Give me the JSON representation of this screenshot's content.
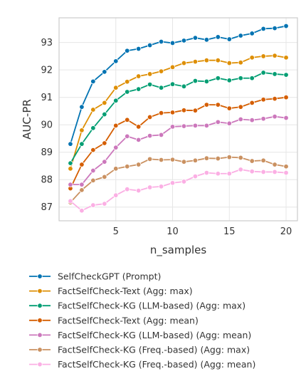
{
  "chart_data": {
    "type": "line",
    "xlabel": "n_samples",
    "ylabel": "AUC-PR",
    "xlim": [
      0,
      21
    ],
    "ylim": [
      86.5,
      93.9
    ],
    "xticks": [
      5,
      10,
      15,
      20
    ],
    "yticks": [
      87,
      88,
      89,
      90,
      91,
      92,
      93
    ],
    "xtick_labels": [
      "5",
      "10",
      "15",
      "20"
    ],
    "ytick_labels": [
      "87",
      "88",
      "89",
      "90",
      "91",
      "92",
      "93"
    ],
    "grid": true,
    "legend_placement": "below",
    "x": [
      1,
      2,
      3,
      4,
      5,
      6,
      7,
      8,
      9,
      10,
      11,
      12,
      13,
      14,
      15,
      16,
      17,
      18,
      19,
      20
    ],
    "series": [
      {
        "name": "SelfCheckGPT (Prompt)",
        "color": "#0173b2",
        "values": [
          89.3,
          90.65,
          91.58,
          91.93,
          92.32,
          92.7,
          92.77,
          92.9,
          93.03,
          92.98,
          93.07,
          93.17,
          93.1,
          93.2,
          93.12,
          93.25,
          93.33,
          93.5,
          93.52,
          93.6
        ]
      },
      {
        "name": "FactSelfCheck-Text (Agg: max)",
        "color": "#de8f05",
        "values": [
          88.4,
          89.8,
          90.55,
          90.8,
          91.35,
          91.57,
          91.77,
          91.85,
          91.95,
          92.1,
          92.25,
          92.3,
          92.35,
          92.35,
          92.25,
          92.27,
          92.45,
          92.5,
          92.52,
          92.45
        ]
      },
      {
        "name": "FactSelfCheck-KG (LLM-based) (Agg: max)",
        "color": "#029e73",
        "values": [
          88.6,
          89.3,
          89.88,
          90.38,
          90.88,
          91.2,
          91.3,
          91.47,
          91.35,
          91.48,
          91.4,
          91.6,
          91.58,
          91.7,
          91.62,
          91.7,
          91.7,
          91.9,
          91.85,
          91.82
        ]
      },
      {
        "name": "FactSelfCheck-Text (Agg: mean)",
        "color": "#d55e00",
        "values": [
          87.68,
          88.55,
          89.08,
          89.33,
          89.97,
          90.18,
          89.93,
          90.28,
          90.43,
          90.45,
          90.53,
          90.52,
          90.73,
          90.73,
          90.6,
          90.65,
          90.8,
          90.92,
          90.95,
          91.0
        ]
      },
      {
        "name": "FactSelfCheck-KG (LLM-based) (Agg: mean)",
        "color": "#cc78bc",
        "values": [
          87.82,
          87.82,
          88.33,
          88.65,
          89.17,
          89.58,
          89.45,
          89.6,
          89.63,
          89.93,
          89.95,
          89.97,
          89.97,
          90.1,
          90.05,
          90.2,
          90.17,
          90.22,
          90.3,
          90.25
        ]
      },
      {
        "name": "FactSelfCheck-KG (Freq.-based) (Agg: max)",
        "color": "#ca9161",
        "values": [
          87.17,
          87.62,
          87.97,
          88.1,
          88.4,
          88.48,
          88.55,
          88.75,
          88.72,
          88.73,
          88.65,
          88.7,
          88.78,
          88.77,
          88.82,
          88.8,
          88.68,
          88.7,
          88.55,
          88.48
        ]
      },
      {
        "name": "FactSelfCheck-KG (Freq.-based) (Agg: mean)",
        "color": "#fbafe4",
        "values": [
          87.22,
          86.87,
          87.07,
          87.12,
          87.43,
          87.65,
          87.6,
          87.72,
          87.75,
          87.88,
          87.93,
          88.12,
          88.25,
          88.22,
          88.22,
          88.37,
          88.3,
          88.28,
          88.28,
          88.25
        ]
      }
    ]
  }
}
